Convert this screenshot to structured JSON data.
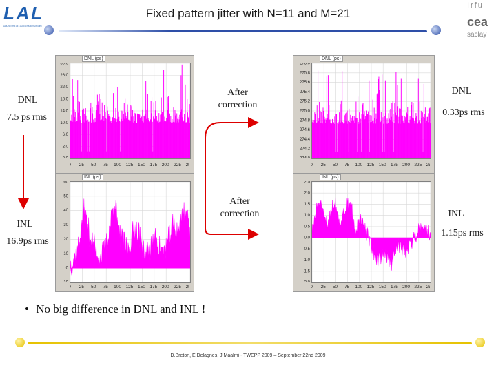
{
  "title": "Fixed pattern jitter with N=11 and M=21",
  "logos": {
    "left_mark": "LAL",
    "left_sub": "LABORATOIRE DE L'ACCELERATEUR LINEAIRE",
    "irfu": "Irfu",
    "cea": "cea",
    "saclay": "saclay"
  },
  "annotations": {
    "dnl_before_label": "DNL",
    "dnl_before_value": "7.5 ps rms",
    "inl_before_label": "INL",
    "inl_before_value": "16.9ps rms",
    "after_correction_1": "After correction",
    "after_correction_2": "After correction",
    "dnl_after_label": "DNL",
    "dnl_after_value": "0.33ps rms",
    "inl_after_label": "INL",
    "inl_after_value": "1.15ps rms"
  },
  "bullet": "No big difference in DNL and INL !",
  "footer": "D.Breton, E.Delagnes, J.Maalmi - TWEPP 2009 – September 22nd 2009",
  "colors": {
    "trace": "#ff00ff",
    "plot_bg": "#ffffff",
    "panel_bg": "#d4d0c8",
    "arrow_red": "#dd0000",
    "rule_blue": "#2e4fa8",
    "rule_gold": "#e6c200"
  },
  "chart_data": [
    {
      "id": "dnl_before",
      "type": "bar",
      "title": "DNL (ps)",
      "xlim": [
        0,
        255
      ],
      "ylim": [
        -2,
        30
      ],
      "x_ticks": [
        "0",
        "25",
        "50",
        "75",
        "100",
        "125",
        "150",
        "175",
        "200",
        "225",
        "255"
      ],
      "y_ticks": [
        "-2.0",
        "2.0",
        "6.0",
        "10.0",
        "14.0",
        "18.0",
        "22.0",
        "26.0",
        "30.0"
      ],
      "baseline": 10,
      "spread": 7,
      "seed": 11
    },
    {
      "id": "dnl_after",
      "type": "bar",
      "title": "DNL (ps)",
      "xlim": [
        0,
        255
      ],
      "ylim": [
        274.0,
        276.2
      ],
      "x_ticks": [
        "0",
        "25",
        "50",
        "75",
        "100",
        "125",
        "150",
        "175",
        "200",
        "225",
        "255"
      ],
      "y_ticks": [
        "274.0",
        "274.2",
        "274.4",
        "274.6",
        "274.8",
        "275.0",
        "275.2",
        "275.4",
        "275.6",
        "275.8",
        "276.0"
      ],
      "baseline": 274.8,
      "spread": 0.45,
      "seed": 23
    },
    {
      "id": "inl_before",
      "type": "area",
      "title": "INL (ps)",
      "xlim": [
        0,
        255
      ],
      "ylim": [
        -10,
        60
      ],
      "x_ticks": [
        "0",
        "25",
        "50",
        "75",
        "100",
        "125",
        "150",
        "175",
        "200",
        "225",
        "255"
      ],
      "y_ticks": [
        "-10",
        "0",
        "10",
        "20",
        "30",
        "40",
        "50",
        "60"
      ],
      "profile": [
        2,
        6,
        10,
        25,
        40,
        30,
        20,
        15,
        10,
        8,
        12,
        20,
        35,
        48,
        25,
        20,
        15,
        12,
        22,
        30,
        25,
        15,
        10,
        12,
        18,
        20,
        15,
        10,
        15,
        22,
        30,
        25,
        30,
        40,
        35,
        25
      ],
      "jitter": 9,
      "seed": 37
    },
    {
      "id": "inl_after",
      "type": "area",
      "title": "INL (ps)",
      "xlim": [
        0,
        255
      ],
      "ylim": [
        -2,
        2.5
      ],
      "x_ticks": [
        "0",
        "25",
        "50",
        "75",
        "100",
        "125",
        "150",
        "175",
        "200",
        "225",
        "255"
      ],
      "y_ticks": [
        "-2.0",
        "-1.5",
        "-1.0",
        "-0.5",
        "0.0",
        "0.5",
        "1.0",
        "1.5",
        "2.0",
        "2.5"
      ],
      "profile": [
        0.2,
        1.2,
        1.6,
        0.8,
        0.6,
        1.4,
        1.5,
        0.6,
        1.2,
        1.5,
        1.3,
        0.4,
        0.8,
        0.5,
        0.1,
        -0.4,
        -0.8,
        -1.0,
        -0.6,
        -0.8,
        -1.2,
        -0.7,
        -0.3,
        -0.5,
        -0.6,
        -0.2,
        0.0,
        0.4,
        0.6,
        0.3,
        0.2
      ],
      "jitter": 0.35,
      "seed": 51
    }
  ]
}
